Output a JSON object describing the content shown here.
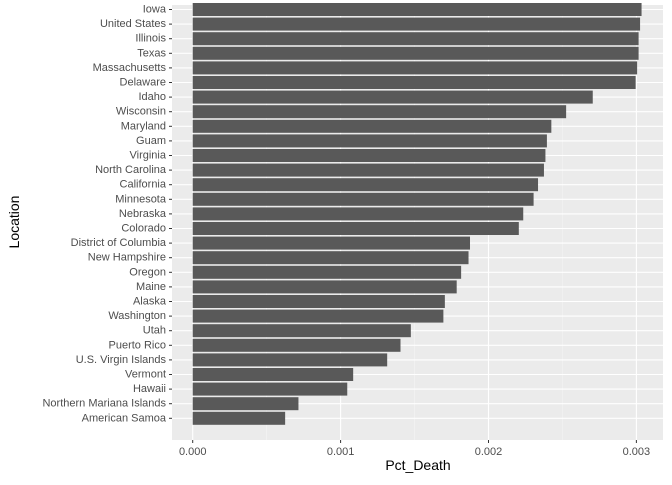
{
  "chart_data": {
    "type": "bar",
    "orientation": "horizontal",
    "xlabel": "Pct_Death",
    "ylabel": "Location",
    "xlim": [
      -0.00014,
      0.00318
    ],
    "x_ticks": [
      0.0,
      0.001,
      0.002,
      0.003
    ],
    "x_tick_labels": [
      "0.000",
      "0.001",
      "0.002",
      "0.003"
    ],
    "grid": true,
    "colors": {
      "panel_background": "#ebebeb",
      "grid_major": "#ffffff",
      "grid_minor": "#f5f5f5",
      "bar_fill": "#595959",
      "tick_text": "#4d4d4d"
    },
    "categories": [
      "Iowa",
      "United States",
      "Illinois",
      "Texas",
      "Massachusetts",
      "Delaware",
      "Idaho",
      "Wisconsin",
      "Maryland",
      "Guam",
      "Virginia",
      "North Carolina",
      "California",
      "Minnesota",
      "Nebraska",
      "Colorado",
      "District of Columbia",
      "New Hampshire",
      "Oregon",
      "Maine",
      "Alaska",
      "Washington",
      "Utah",
      "Puerto Rico",
      "U.S. Virgin Islands",
      "Vermont",
      "Hawaii",
      "Northern Mariana Islands",
      "American Samoa"
    ],
    "values": [
      0.003035,
      0.003025,
      0.003015,
      0.003015,
      0.003005,
      0.002995,
      0.002705,
      0.002525,
      0.002425,
      0.002395,
      0.002385,
      0.002375,
      0.002335,
      0.002305,
      0.002235,
      0.002205,
      0.001875,
      0.001865,
      0.001815,
      0.001785,
      0.001705,
      0.001695,
      0.001475,
      0.001405,
      0.001315,
      0.001085,
      0.001045,
      0.000715,
      0.000625
    ]
  }
}
